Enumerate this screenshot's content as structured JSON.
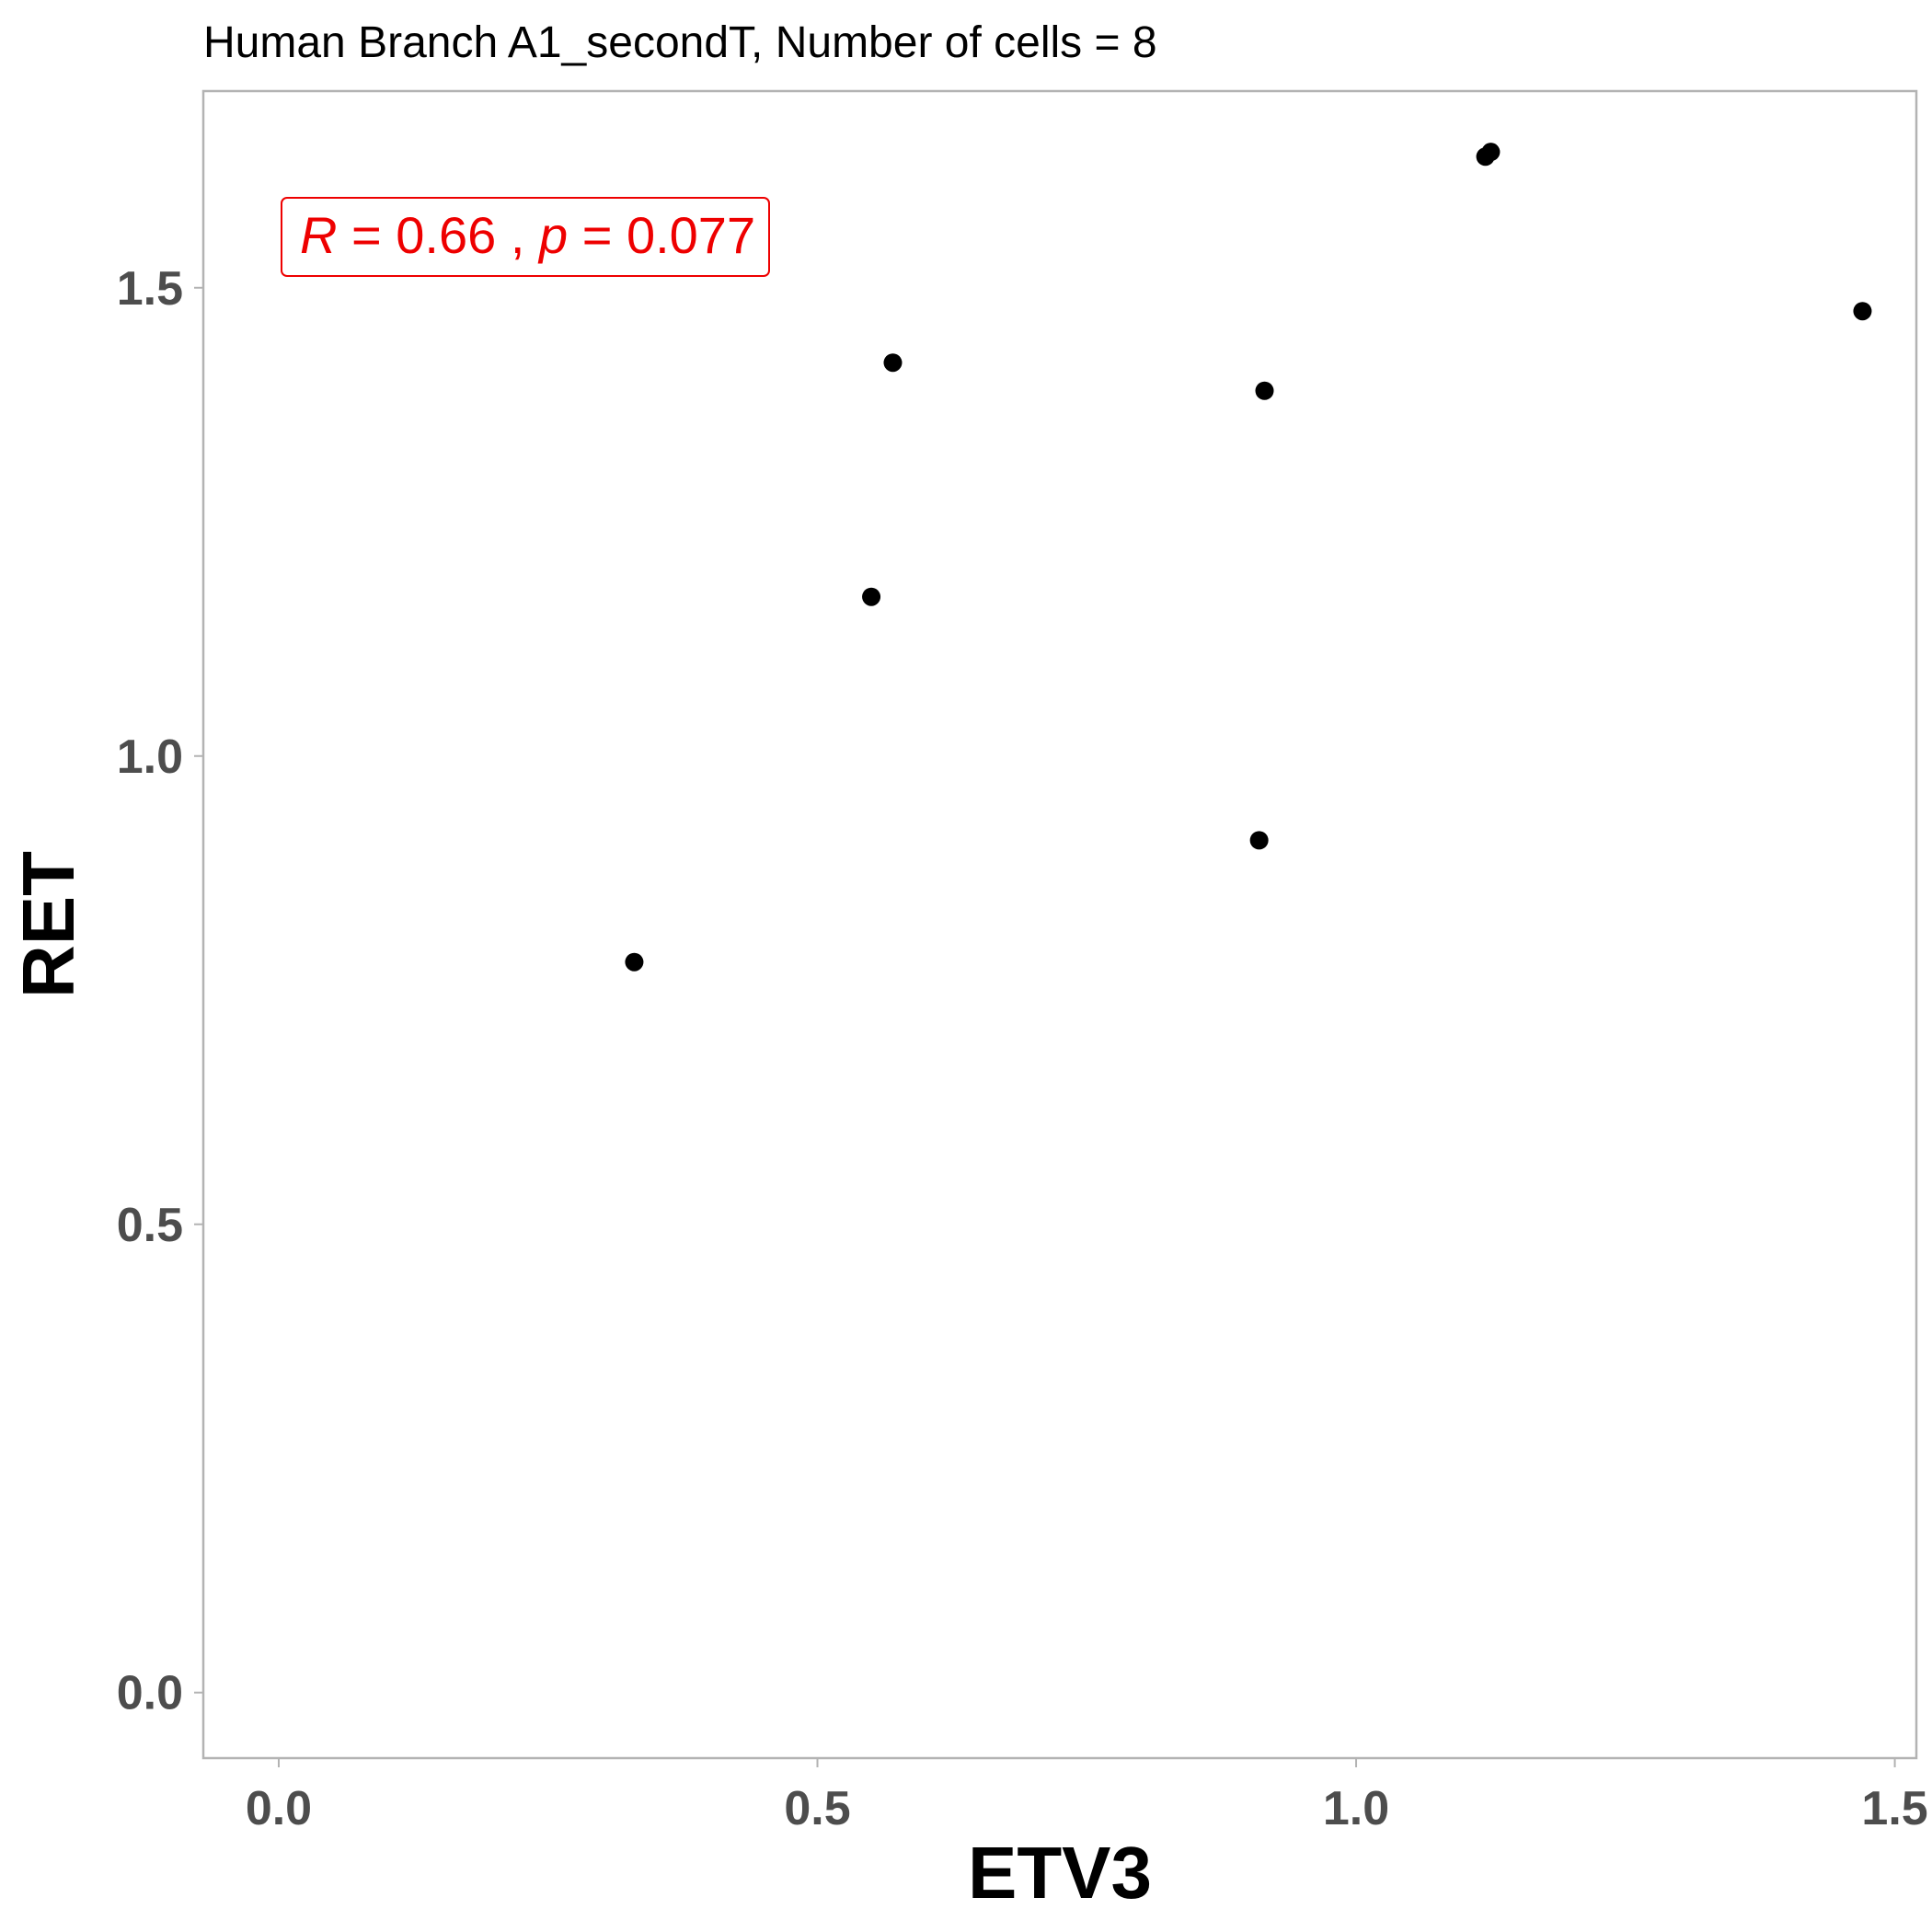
{
  "chart_data": {
    "type": "scatter",
    "title": "Human Branch A1_secondT, Number of cells = 8",
    "xlabel": "ETV3",
    "ylabel": "RET",
    "xlim": [
      -0.07,
      1.52
    ],
    "ylim": [
      -0.07,
      1.71
    ],
    "xticks": [
      0.0,
      0.5,
      1.0,
      1.5
    ],
    "yticks": [
      0.0,
      0.5,
      1.0,
      1.5
    ],
    "xtick_labels": [
      "0.0",
      "0.5",
      "1.0",
      "1.5"
    ],
    "ytick_labels": [
      "0.0",
      "0.5",
      "1.0",
      "1.5"
    ],
    "grid": false,
    "points": [
      {
        "x": 0.33,
        "y": 0.78
      },
      {
        "x": 0.55,
        "y": 1.17
      },
      {
        "x": 0.57,
        "y": 1.42
      },
      {
        "x": 0.91,
        "y": 0.91
      },
      {
        "x": 0.915,
        "y": 1.39
      },
      {
        "x": 1.12,
        "y": 1.64
      },
      {
        "x": 1.125,
        "y": 1.645
      },
      {
        "x": 1.47,
        "y": 1.475
      }
    ],
    "annotation": {
      "r_label": "R",
      "r_value": "0.66",
      "p_label": "p",
      "p_value": "0.077",
      "color": "#ee0000"
    },
    "point_color": "#000000",
    "frame_color": "#b3b3b3"
  }
}
